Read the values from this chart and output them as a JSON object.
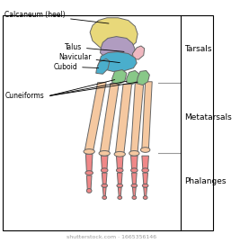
{
  "colors": {
    "calcaneum": "#e8d87a",
    "talus_purple": "#b09cc0",
    "talus_pink": "#f0b8c0",
    "navicular": "#4aaecc",
    "cuboid": "#4aaecc",
    "cuneiform": "#88c888",
    "metatarsal": "#f5c8a0",
    "phalanges": "#f08888",
    "outline": "#666666",
    "background": "#ffffff",
    "bracket_line": "#999999"
  },
  "labels": {
    "calcaneum": "Calcaneum (heel)",
    "talus": "Talus",
    "navicular": "Navicular",
    "cuboid": "Cuboid",
    "cuneiforms": "Cuneiforms",
    "tarsals": "Tarsals",
    "metatarsals": "Metatarsals",
    "phalanges": "Phalanges",
    "watermark": "shutterstock.com · 1665356146"
  },
  "font_size": {
    "label": 5.5,
    "bracket": 6.5,
    "watermark": 4.5
  }
}
